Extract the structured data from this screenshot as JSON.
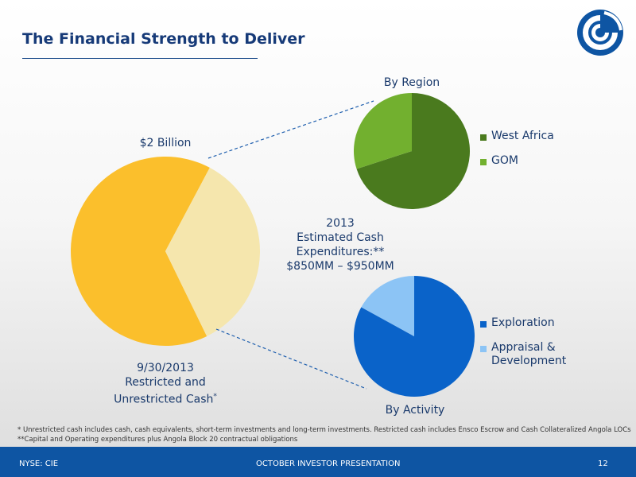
{
  "header": {
    "title": "The Financial Strength to Deliver"
  },
  "labels": {
    "total": "$2 Billion",
    "cash_caption": [
      "9/30/2013",
      "Restricted and",
      "Unrestricted Cash"
    ],
    "cash_caption_marker": "*",
    "center_text": [
      "2013",
      "Estimated Cash",
      "Expenditures:**",
      "$850MM – $950MM"
    ]
  },
  "footnotes": [
    "* Unrestricted cash includes cash, cash equivalents, short-term investments and long-term investments. Restricted cash includes Ensco Escrow and Cash Collateralized Angola LOCs",
    "**Capital and Operating expenditures plus Angola Block 20 contractual obligations"
  ],
  "footer": {
    "left": "NYSE: CIE",
    "center": "OCTOBER INVESTOR PRESENTATION",
    "page": "12"
  },
  "chart_data": [
    {
      "type": "pie",
      "title": "",
      "categories": [
        "Unrestricted",
        "Restricted"
      ],
      "values": [
        65,
        35
      ],
      "colors": [
        "#fbbf2c",
        "#f5e6ad"
      ]
    },
    {
      "type": "pie",
      "title": "By Region",
      "categories": [
        "West Africa",
        "GOM"
      ],
      "values": [
        70,
        30
      ],
      "colors": [
        "#4a7a1e",
        "#72b02f"
      ],
      "legend": "right"
    },
    {
      "type": "pie",
      "title": "By Activity",
      "categories": [
        "Exploration",
        "Appraisal & Development"
      ],
      "values": [
        83,
        17
      ],
      "colors": [
        "#0a63c9",
        "#8cc4f5"
      ],
      "legend": "right"
    }
  ]
}
